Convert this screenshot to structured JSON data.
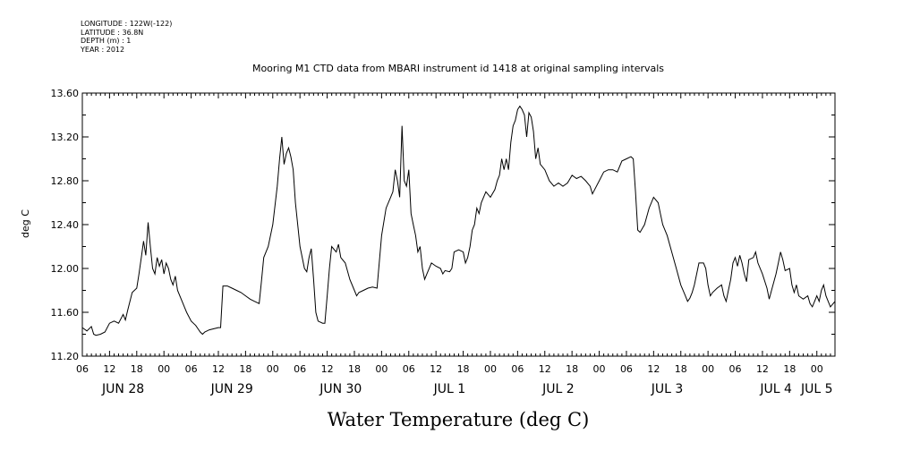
{
  "meta": [
    "LONGITUDE : 122W(-122)",
    "LATITUDE : 36.8N",
    "DEPTH (m) : 1",
    "YEAR : 2012"
  ],
  "chart_data": {
    "type": "line",
    "title": "Mooring M1 CTD data from MBARI instrument id 1418 at original sampling intervals",
    "xlabel": "Water Temperature (deg C)",
    "ylabel": "deg C",
    "ylim": [
      11.2,
      13.6
    ],
    "xlim": [
      0,
      166
    ],
    "x_unit": "hours since 2012-06-28 06:00",
    "y_ticks": [
      "11.20",
      "11.60",
      "12.00",
      "12.40",
      "12.80",
      "13.20",
      "13.60"
    ],
    "x_hour_ticks": [
      "06",
      "12",
      "18",
      "00",
      "06",
      "12",
      "18",
      "00",
      "06",
      "12",
      "18",
      "00",
      "06",
      "12",
      "18",
      "00",
      "06",
      "12",
      "18",
      "00",
      "06",
      "12",
      "18",
      "00",
      "06",
      "12",
      "18",
      "00"
    ],
    "day_labels": [
      {
        "label": "JUN 28",
        "x": 9
      },
      {
        "label": "JUN 29",
        "x": 33
      },
      {
        "label": "JUN 30",
        "x": 57
      },
      {
        "label": "JUL 1",
        "x": 81
      },
      {
        "label": "JUL 2",
        "x": 105
      },
      {
        "label": "JUL 3",
        "x": 129
      },
      {
        "label": "JUL 4",
        "x": 153
      },
      {
        "label": "JUL 5",
        "x": 162
      }
    ],
    "grid": false,
    "series": [
      {
        "values": [
          [
            0,
            11.46
          ],
          [
            1,
            11.43
          ],
          [
            2,
            11.47
          ],
          [
            2.5,
            11.4
          ],
          [
            3,
            11.39
          ],
          [
            4,
            11.4
          ],
          [
            5,
            11.42
          ],
          [
            6,
            11.5
          ],
          [
            7,
            11.52
          ],
          [
            8,
            11.5
          ],
          [
            9,
            11.58
          ],
          [
            9.5,
            11.53
          ],
          [
            10,
            11.62
          ],
          [
            11,
            11.78
          ],
          [
            12,
            11.82
          ],
          [
            12.5,
            11.95
          ],
          [
            13,
            12.1
          ],
          [
            13.5,
            12.25
          ],
          [
            14,
            12.12
          ],
          [
            14.5,
            12.42
          ],
          [
            15,
            12.2
          ],
          [
            15.5,
            12.0
          ],
          [
            16,
            11.95
          ],
          [
            16.5,
            12.1
          ],
          [
            17,
            12.02
          ],
          [
            17.5,
            12.08
          ],
          [
            18,
            11.95
          ],
          [
            18.5,
            12.05
          ],
          [
            19,
            12.0
          ],
          [
            19.5,
            11.9
          ],
          [
            20,
            11.85
          ],
          [
            20.5,
            11.93
          ],
          [
            21,
            11.8
          ],
          [
            22,
            11.7
          ],
          [
            22.5,
            11.65
          ],
          [
            23,
            11.6
          ],
          [
            24,
            11.52
          ],
          [
            25,
            11.48
          ],
          [
            25.5,
            11.45
          ],
          [
            26,
            11.42
          ],
          [
            26.5,
            11.4
          ],
          [
            27,
            11.42
          ],
          [
            28,
            11.44
          ],
          [
            29,
            11.45
          ],
          [
            30,
            11.46
          ],
          [
            30.5,
            11.46
          ],
          [
            31,
            11.84
          ],
          [
            32,
            11.84
          ],
          [
            33,
            11.82
          ],
          [
            34,
            11.8
          ],
          [
            35,
            11.78
          ],
          [
            36,
            11.75
          ],
          [
            37,
            11.72
          ],
          [
            38,
            11.7
          ],
          [
            39,
            11.68
          ],
          [
            39.5,
            11.88
          ],
          [
            40,
            12.1
          ],
          [
            41,
            12.2
          ],
          [
            42,
            12.4
          ],
          [
            43,
            12.75
          ],
          [
            43.5,
            13.0
          ],
          [
            44,
            13.2
          ],
          [
            44.5,
            12.95
          ],
          [
            45,
            13.05
          ],
          [
            45.5,
            13.1
          ],
          [
            46,
            13.02
          ],
          [
            46.5,
            12.9
          ],
          [
            47,
            12.6
          ],
          [
            48,
            12.2
          ],
          [
            49,
            12.0
          ],
          [
            49.5,
            11.97
          ],
          [
            50,
            12.1
          ],
          [
            50.5,
            12.18
          ],
          [
            51,
            11.9
          ],
          [
            51.5,
            11.6
          ],
          [
            52,
            11.52
          ],
          [
            53,
            11.5
          ],
          [
            53.5,
            11.5
          ],
          [
            54,
            11.75
          ],
          [
            54.5,
            12.0
          ],
          [
            55,
            12.2
          ],
          [
            56,
            12.15
          ],
          [
            56.5,
            12.22
          ],
          [
            57,
            12.1
          ],
          [
            58,
            12.05
          ],
          [
            59,
            11.9
          ],
          [
            60,
            11.8
          ],
          [
            60.5,
            11.75
          ],
          [
            61,
            11.78
          ],
          [
            62,
            11.8
          ],
          [
            63,
            11.82
          ],
          [
            64,
            11.83
          ],
          [
            65,
            11.82
          ],
          [
            66,
            12.3
          ],
          [
            67,
            12.55
          ],
          [
            68,
            12.65
          ],
          [
            68.5,
            12.7
          ],
          [
            69,
            12.9
          ],
          [
            69.5,
            12.8
          ],
          [
            70,
            12.65
          ],
          [
            70.5,
            13.3
          ],
          [
            71,
            12.8
          ],
          [
            71.5,
            12.75
          ],
          [
            72,
            12.9
          ],
          [
            72.5,
            12.5
          ],
          [
            73,
            12.4
          ],
          [
            73.5,
            12.3
          ],
          [
            74,
            12.15
          ],
          [
            74.5,
            12.2
          ],
          [
            75,
            12.0
          ],
          [
            75.5,
            11.9
          ],
          [
            76,
            11.95
          ],
          [
            77,
            12.05
          ],
          [
            78,
            12.02
          ],
          [
            79,
            12.0
          ],
          [
            79.5,
            11.95
          ],
          [
            80,
            11.98
          ],
          [
            81,
            11.97
          ],
          [
            81.5,
            12.0
          ],
          [
            82,
            12.15
          ],
          [
            83,
            12.17
          ],
          [
            84,
            12.15
          ],
          [
            84.5,
            12.05
          ],
          [
            85,
            12.1
          ],
          [
            85.5,
            12.2
          ],
          [
            86,
            12.35
          ],
          [
            86.5,
            12.4
          ],
          [
            87,
            12.55
          ],
          [
            87.5,
            12.5
          ],
          [
            88,
            12.6
          ],
          [
            89,
            12.7
          ],
          [
            90,
            12.65
          ],
          [
            91,
            12.72
          ],
          [
            91.5,
            12.8
          ],
          [
            92,
            12.85
          ],
          [
            92.5,
            13.0
          ],
          [
            93,
            12.9
          ],
          [
            93.5,
            13.0
          ],
          [
            94,
            12.9
          ],
          [
            94.5,
            13.15
          ],
          [
            95,
            13.3
          ],
          [
            95.5,
            13.35
          ],
          [
            96,
            13.45
          ],
          [
            96.5,
            13.48
          ],
          [
            97,
            13.45
          ],
          [
            97.5,
            13.4
          ],
          [
            98,
            13.2
          ],
          [
            98.5,
            13.42
          ],
          [
            99,
            13.38
          ],
          [
            99.5,
            13.25
          ],
          [
            100,
            13.0
          ],
          [
            100.5,
            13.1
          ],
          [
            101,
            12.95
          ],
          [
            102,
            12.9
          ],
          [
            103,
            12.8
          ],
          [
            104,
            12.75
          ],
          [
            105,
            12.78
          ],
          [
            106,
            12.75
          ],
          [
            107,
            12.78
          ],
          [
            108,
            12.85
          ],
          [
            109,
            12.82
          ],
          [
            110,
            12.84
          ],
          [
            111,
            12.8
          ],
          [
            112,
            12.75
          ],
          [
            112.5,
            12.68
          ],
          [
            113,
            12.72
          ],
          [
            114,
            12.8
          ],
          [
            115,
            12.88
          ],
          [
            116,
            12.9
          ],
          [
            117,
            12.9
          ],
          [
            118,
            12.88
          ],
          [
            119,
            12.98
          ],
          [
            120,
            13.0
          ],
          [
            121,
            13.02
          ],
          [
            121.5,
            13.0
          ],
          [
            122,
            12.7
          ],
          [
            122.5,
            12.35
          ],
          [
            123,
            12.33
          ],
          [
            124,
            12.4
          ],
          [
            125,
            12.55
          ],
          [
            126,
            12.65
          ],
          [
            127,
            12.6
          ],
          [
            127.5,
            12.5
          ],
          [
            128,
            12.4
          ],
          [
            129,
            12.3
          ],
          [
            130,
            12.15
          ],
          [
            131,
            12.0
          ],
          [
            132,
            11.85
          ],
          [
            133,
            11.75
          ],
          [
            133.5,
            11.7
          ],
          [
            134,
            11.73
          ],
          [
            134.5,
            11.78
          ],
          [
            135,
            11.85
          ],
          [
            136,
            12.05
          ],
          [
            137,
            12.05
          ],
          [
            137.5,
            12.0
          ],
          [
            138,
            11.85
          ],
          [
            138.5,
            11.75
          ],
          [
            139,
            11.78
          ],
          [
            140,
            11.82
          ],
          [
            141,
            11.85
          ],
          [
            141.5,
            11.75
          ],
          [
            142,
            11.7
          ],
          [
            142.5,
            11.8
          ],
          [
            143,
            11.9
          ],
          [
            143.5,
            12.05
          ],
          [
            144,
            12.1
          ],
          [
            144.5,
            12.02
          ],
          [
            145,
            12.12
          ],
          [
            145.5,
            12.05
          ],
          [
            146,
            11.95
          ],
          [
            146.5,
            11.88
          ],
          [
            147,
            12.08
          ],
          [
            148,
            12.1
          ],
          [
            148.5,
            12.15
          ],
          [
            149,
            12.05
          ],
          [
            150,
            11.95
          ],
          [
            151,
            11.82
          ],
          [
            151.5,
            11.72
          ],
          [
            152,
            11.8
          ],
          [
            153,
            11.95
          ],
          [
            153.5,
            12.05
          ],
          [
            154,
            12.15
          ],
          [
            154.5,
            12.08
          ],
          [
            155,
            11.98
          ],
          [
            156,
            12.0
          ],
          [
            156.5,
            11.85
          ],
          [
            157,
            11.78
          ],
          [
            157.5,
            11.85
          ],
          [
            158,
            11.75
          ],
          [
            159,
            11.72
          ],
          [
            160,
            11.75
          ],
          [
            160.5,
            11.68
          ],
          [
            161,
            11.65
          ],
          [
            161.5,
            11.7
          ],
          [
            162,
            11.75
          ],
          [
            162.5,
            11.7
          ],
          [
            163,
            11.8
          ],
          [
            163.5,
            11.85
          ],
          [
            164,
            11.75
          ],
          [
            164.5,
            11.7
          ],
          [
            165,
            11.65
          ],
          [
            166,
            11.7
          ]
        ]
      }
    ]
  }
}
